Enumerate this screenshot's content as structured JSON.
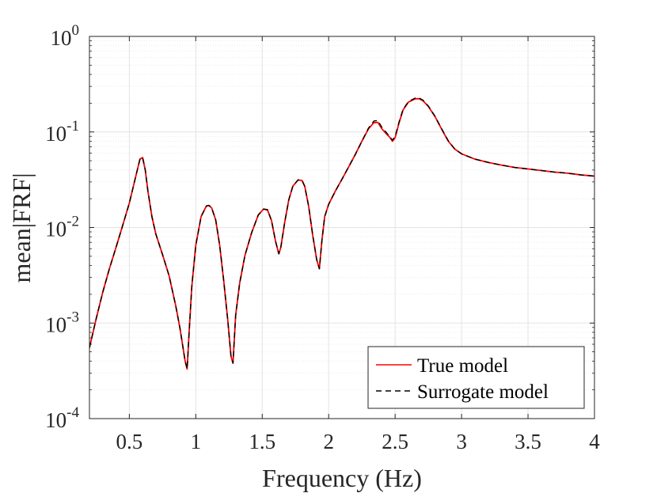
{
  "chart_data": {
    "type": "line",
    "title": "",
    "xlabel": "Frequency (Hz)",
    "ylabel": "mean|FRF|",
    "xlim": [
      0.2,
      4
    ],
    "ylim": [
      0.0001,
      1
    ],
    "yscale": "log",
    "grid": true,
    "minor_grid": true,
    "legend_position": "bottom-right",
    "xticks": [
      0.5,
      1,
      1.5,
      2,
      2.5,
      3,
      3.5,
      4
    ],
    "xtick_labels": [
      "0.5",
      "1",
      "1.5",
      "2",
      "2.5",
      "3",
      "3.5",
      "4"
    ],
    "yticks": [
      {
        "value": 0.0001,
        "base": "10",
        "exp": "-4"
      },
      {
        "value": 0.001,
        "base": "10",
        "exp": "-3"
      },
      {
        "value": 0.01,
        "base": "10",
        "exp": "-2"
      },
      {
        "value": 0.1,
        "base": "10",
        "exp": "-1"
      },
      {
        "value": 1,
        "base": "10",
        "exp": "0"
      }
    ],
    "x": [
      0.2,
      0.25,
      0.3,
      0.35,
      0.4,
      0.45,
      0.5,
      0.55,
      0.58,
      0.6,
      0.62,
      0.64,
      0.67,
      0.7,
      0.75,
      0.8,
      0.85,
      0.88,
      0.9,
      0.92,
      0.935,
      0.95,
      0.97,
      1.0,
      1.04,
      1.08,
      1.1,
      1.12,
      1.15,
      1.18,
      1.21,
      1.24,
      1.265,
      1.28,
      1.3,
      1.33,
      1.37,
      1.42,
      1.47,
      1.51,
      1.54,
      1.57,
      1.6,
      1.625,
      1.64,
      1.67,
      1.7,
      1.73,
      1.77,
      1.8,
      1.82,
      1.85,
      1.88,
      1.91,
      1.93,
      1.95,
      1.97,
      2.0,
      2.05,
      2.1,
      2.15,
      2.2,
      2.25,
      2.3,
      2.34,
      2.37,
      2.4,
      2.43,
      2.46,
      2.48,
      2.5,
      2.53,
      2.56,
      2.6,
      2.65,
      2.68,
      2.71,
      2.75,
      2.8,
      2.85,
      2.9,
      2.95,
      3.0,
      3.1,
      3.2,
      3.3,
      3.4,
      3.5,
      3.6,
      3.7,
      3.8,
      3.9,
      4.0
    ],
    "series": [
      {
        "name": "True model",
        "color": "#ff0000",
        "dash": "solid",
        "values": [
          0.00055,
          0.0011,
          0.0021,
          0.0037,
          0.0062,
          0.0105,
          0.018,
          0.035,
          0.052,
          0.054,
          0.04,
          0.024,
          0.013,
          0.0085,
          0.0052,
          0.0031,
          0.0015,
          0.0009,
          0.0006,
          0.0004,
          0.00033,
          0.0008,
          0.0024,
          0.0065,
          0.013,
          0.0168,
          0.017,
          0.016,
          0.012,
          0.0065,
          0.0028,
          0.0011,
          0.00045,
          0.00038,
          0.0012,
          0.0026,
          0.0051,
          0.0088,
          0.0135,
          0.0156,
          0.0152,
          0.0118,
          0.0072,
          0.0053,
          0.0062,
          0.0115,
          0.0195,
          0.027,
          0.0315,
          0.031,
          0.027,
          0.0165,
          0.0083,
          0.0046,
          0.0037,
          0.0075,
          0.013,
          0.0175,
          0.024,
          0.032,
          0.043,
          0.058,
          0.08,
          0.108,
          0.125,
          0.126,
          0.108,
          0.097,
          0.088,
          0.08,
          0.087,
          0.125,
          0.17,
          0.205,
          0.222,
          0.223,
          0.212,
          0.185,
          0.145,
          0.107,
          0.08,
          0.066,
          0.059,
          0.052,
          0.048,
          0.045,
          0.0425,
          0.041,
          0.0395,
          0.038,
          0.037,
          0.0355,
          0.0345
        ]
      },
      {
        "name": "Surrogate model",
        "color": "#000000",
        "dash": "dashed",
        "values": [
          0.00055,
          0.0011,
          0.0021,
          0.0037,
          0.0062,
          0.0105,
          0.018,
          0.035,
          0.052,
          0.054,
          0.04,
          0.024,
          0.013,
          0.0085,
          0.0052,
          0.0031,
          0.0015,
          0.0009,
          0.0006,
          0.0004,
          0.00033,
          0.0008,
          0.0024,
          0.0065,
          0.013,
          0.0168,
          0.017,
          0.016,
          0.012,
          0.0065,
          0.0028,
          0.0011,
          0.00045,
          0.00038,
          0.0012,
          0.0026,
          0.0051,
          0.0088,
          0.0135,
          0.0156,
          0.0154,
          0.0118,
          0.0072,
          0.0053,
          0.0062,
          0.0115,
          0.0195,
          0.027,
          0.0315,
          0.031,
          0.027,
          0.0165,
          0.0083,
          0.0046,
          0.0037,
          0.0075,
          0.013,
          0.0175,
          0.024,
          0.032,
          0.043,
          0.058,
          0.08,
          0.11,
          0.13,
          0.132,
          0.112,
          0.1,
          0.089,
          0.082,
          0.09,
          0.128,
          0.173,
          0.208,
          0.226,
          0.227,
          0.215,
          0.187,
          0.146,
          0.108,
          0.081,
          0.066,
          0.059,
          0.052,
          0.048,
          0.045,
          0.0425,
          0.041,
          0.0395,
          0.038,
          0.037,
          0.0355,
          0.0345
        ]
      }
    ]
  }
}
